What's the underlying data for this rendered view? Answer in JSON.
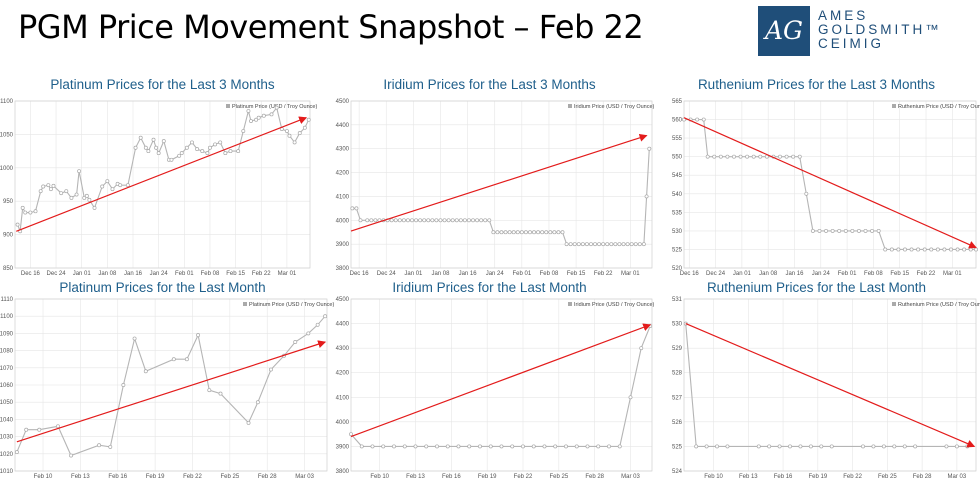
{
  "slide": {
    "title": "PGM Price Movement Snapshot – Feb 22"
  },
  "logo": {
    "mark": "AG",
    "line1": "AMES",
    "line2": "GOLDSMITH™",
    "line3": "CEIMIG"
  },
  "colors": {
    "line": "#b5b5b5",
    "trend": "#e31b1b",
    "title": "#1f5f8b",
    "grid": "#e6e6e6"
  },
  "chart_data": [
    {
      "type": "line",
      "title": "Platinum Prices for the Last 3 Months",
      "legend": "Platinum Price (USD / Troy Ounce)",
      "x_ticks": [
        "Dec 16",
        "Dec 24",
        "Jan 01",
        "Jan 08",
        "Jan 16",
        "Jan 24",
        "Feb 01",
        "Feb 08",
        "Feb 15",
        "Feb 22",
        "Mar 01"
      ],
      "x_range": [
        -0.6,
        10.9
      ],
      "y_ticks": [
        850,
        900,
        950,
        1000,
        1050,
        1100
      ],
      "ylim": [
        850,
        1100
      ],
      "x": [
        -0.5,
        -0.4,
        -0.3,
        -0.2,
        0.0,
        0.2,
        0.4,
        0.5,
        0.7,
        0.8,
        0.9,
        1.2,
        1.4,
        1.6,
        1.8,
        1.9,
        2.1,
        2.2,
        2.3,
        2.5,
        2.8,
        3.0,
        3.2,
        3.4,
        3.5,
        3.8,
        4.1,
        4.3,
        4.5,
        4.6,
        4.8,
        4.9,
        5.0,
        5.2,
        5.4,
        5.5,
        5.8,
        5.9,
        6.1,
        6.3,
        6.5,
        6.7,
        6.9,
        7.0,
        7.2,
        7.4,
        7.6,
        7.8,
        8.1,
        8.3,
        8.5,
        8.6,
        8.8,
        8.9,
        9.1,
        9.4,
        9.6,
        9.8,
        10.0,
        10.1,
        10.3,
        10.5,
        10.7,
        10.85
      ],
      "values": [
        915,
        905,
        940,
        933,
        933,
        935,
        965,
        972,
        974,
        968,
        973,
        962,
        965,
        955,
        960,
        995,
        955,
        958,
        952,
        940,
        972,
        980,
        968,
        976,
        974,
        974,
        1030,
        1045,
        1030,
        1025,
        1042,
        1030,
        1022,
        1040,
        1012,
        1012,
        1018,
        1022,
        1030,
        1038,
        1028,
        1025,
        1022,
        1030,
        1035,
        1038,
        1022,
        1025,
        1025,
        1055,
        1085,
        1070,
        1072,
        1075,
        1078,
        1080,
        1090,
        1058,
        1055,
        1048,
        1038,
        1052,
        1060,
        1072
      ],
      "trend": [
        [
          -0.55,
          905
        ],
        [
          10.75,
          1075
        ]
      ]
    },
    {
      "type": "line",
      "title": "Iridium Prices for the Last 3 Months",
      "legend": "Iridium Price (USD / Troy Ounce)",
      "x_ticks": [
        "Dec 16",
        "Dec 24",
        "Jan 01",
        "Jan 08",
        "Jan 16",
        "Jan 24",
        "Feb 01",
        "Feb 08",
        "Feb 15",
        "Feb 22",
        "Mar 01"
      ],
      "x_range": [
        -0.3,
        10.8
      ],
      "y_ticks": [
        3800,
        3900,
        4000,
        4100,
        4200,
        4300,
        4400,
        4500
      ],
      "ylim": [
        3800,
        4500
      ],
      "x": [
        -0.25,
        -0.1,
        0.05,
        0.3,
        0.45,
        0.6,
        0.75,
        0.9,
        1.05,
        1.2,
        1.35,
        1.5,
        1.65,
        1.8,
        1.95,
        2.1,
        2.25,
        2.4,
        2.55,
        2.7,
        2.85,
        3.0,
        3.15,
        3.3,
        3.45,
        3.6,
        3.75,
        3.9,
        4.05,
        4.2,
        4.35,
        4.5,
        4.65,
        4.8,
        4.95,
        5.1,
        5.25,
        5.4,
        5.55,
        5.7,
        5.85,
        6.0,
        6.15,
        6.3,
        6.45,
        6.6,
        6.75,
        6.9,
        7.05,
        7.2,
        7.35,
        7.5,
        7.65,
        7.8,
        7.95,
        8.1,
        8.25,
        8.4,
        8.55,
        8.7,
        8.85,
        9.0,
        9.15,
        9.3,
        9.45,
        9.6,
        9.75,
        9.9,
        10.05,
        10.2,
        10.35,
        10.5,
        10.6,
        10.7
      ],
      "values": [
        4050,
        4050,
        4000,
        4000,
        4000,
        4000,
        4000,
        4000,
        4000,
        4000,
        4000,
        4000,
        4000,
        4000,
        4000,
        4000,
        4000,
        4000,
        4000,
        4000,
        4000,
        4000,
        4000,
        4000,
        4000,
        4000,
        4000,
        4000,
        4000,
        4000,
        4000,
        4000,
        4000,
        4000,
        3950,
        3950,
        3950,
        3950,
        3950,
        3950,
        3950,
        3950,
        3950,
        3950,
        3950,
        3950,
        3950,
        3950,
        3950,
        3950,
        3950,
        3950,
        3900,
        3900,
        3900,
        3900,
        3900,
        3900,
        3900,
        3900,
        3900,
        3900,
        3900,
        3900,
        3900,
        3900,
        3900,
        3900,
        3900,
        3900,
        3900,
        3900,
        4100,
        4300
      ],
      "trend": [
        [
          -0.3,
          3955
        ],
        [
          10.6,
          4355
        ]
      ]
    },
    {
      "type": "line",
      "title": "Ruthenium Prices for the Last 3 Months",
      "legend": "Ruthenium Price (USD / Troy Ounce)",
      "x_ticks": [
        "Dec 16",
        "Dec 24",
        "Jan 01",
        "Jan 08",
        "Jan 16",
        "Jan 24",
        "Feb 01",
        "Feb 08",
        "Feb 15",
        "Feb 22",
        "Mar 01"
      ],
      "x_range": [
        -0.2,
        10.9
      ],
      "y_ticks": [
        520,
        525,
        530,
        535,
        540,
        545,
        550,
        555,
        560,
        565
      ],
      "ylim": [
        520,
        565
      ],
      "x": [
        -0.2,
        0.05,
        0.3,
        0.55,
        0.7,
        0.95,
        1.2,
        1.45,
        1.7,
        1.95,
        2.2,
        2.45,
        2.7,
        2.95,
        3.2,
        3.45,
        3.7,
        3.95,
        4.2,
        4.45,
        4.7,
        4.95,
        5.2,
        5.45,
        5.7,
        5.95,
        6.2,
        6.45,
        6.7,
        6.95,
        7.2,
        7.45,
        7.7,
        7.95,
        8.2,
        8.45,
        8.7,
        8.95,
        9.2,
        9.45,
        9.7,
        9.95,
        10.2,
        10.45,
        10.7,
        10.9
      ],
      "values": [
        560,
        560,
        560,
        560,
        550,
        550,
        550,
        550,
        550,
        550,
        550,
        550,
        550,
        550,
        550,
        550,
        550,
        550,
        550,
        540,
        530,
        530,
        530,
        530,
        530,
        530,
        530,
        530,
        530,
        530,
        530,
        525,
        525,
        525,
        525,
        525,
        525,
        525,
        525,
        525,
        525,
        525,
        525,
        525,
        525,
        525
      ],
      "trend": [
        [
          -0.2,
          560.5
        ],
        [
          10.9,
          525.5
        ]
      ]
    },
    {
      "type": "line",
      "title": "Platinum Prices for the Last Month",
      "legend": "Platinum Price (USD / Troy Ounce)",
      "x_ticks": [
        "Feb 10",
        "Feb 13",
        "Feb 16",
        "Feb 19",
        "Feb 22",
        "Feb 25",
        "Feb 28",
        "Mar 03"
      ],
      "x_range": [
        -0.75,
        7.6
      ],
      "y_ticks": [
        1010,
        1020,
        1030,
        1040,
        1050,
        1060,
        1070,
        1080,
        1090,
        1100,
        1110
      ],
      "ylim": [
        1010,
        1110
      ],
      "x": [
        -0.7,
        -0.45,
        -0.1,
        0.4,
        0.75,
        1.5,
        1.8,
        2.15,
        2.45,
        2.75,
        3.5,
        3.85,
        4.15,
        4.45,
        4.75,
        5.5,
        5.75,
        6.1,
        6.45,
        6.75,
        7.1,
        7.35,
        7.55
      ],
      "values": [
        1021,
        1034,
        1034,
        1036,
        1019,
        1025,
        1024,
        1060,
        1087,
        1068,
        1075,
        1075,
        1089,
        1057,
        1055,
        1038,
        1050,
        1069,
        1077,
        1085,
        1090,
        1095,
        1100
      ],
      "trend": [
        [
          -0.7,
          1027
        ],
        [
          7.55,
          1085
        ]
      ]
    },
    {
      "type": "line",
      "title": "Iridium Prices for the Last Month",
      "legend": "Iridium Price (USD / Troy Ounce)",
      "x_ticks": [
        "Feb 10",
        "Feb 13",
        "Feb 16",
        "Feb 19",
        "Feb 22",
        "Feb 25",
        "Feb 28",
        "Mar 03"
      ],
      "x_range": [
        -0.8,
        7.6
      ],
      "y_ticks": [
        3800,
        3900,
        4000,
        4100,
        4200,
        4300,
        4400,
        4500
      ],
      "ylim": [
        3800,
        4500
      ],
      "x": [
        -0.8,
        -0.5,
        -0.2,
        0.1,
        0.4,
        0.7,
        1.0,
        1.3,
        1.6,
        1.9,
        2.2,
        2.5,
        2.8,
        3.1,
        3.4,
        3.7,
        4.0,
        4.3,
        4.6,
        4.9,
        5.2,
        5.5,
        5.8,
        6.1,
        6.4,
        6.7,
        7.0,
        7.3,
        7.55
      ],
      "values": [
        3950,
        3900,
        3900,
        3900,
        3900,
        3900,
        3900,
        3900,
        3900,
        3900,
        3900,
        3900,
        3900,
        3900,
        3900,
        3900,
        3900,
        3900,
        3900,
        3900,
        3900,
        3900,
        3900,
        3900,
        3900,
        3900,
        4100,
        4300,
        4390
      ],
      "trend": [
        [
          -0.8,
          3940
        ],
        [
          7.55,
          4395
        ]
      ]
    },
    {
      "type": "line",
      "title": "Ruthenium Prices for the Last Month",
      "legend": "Ruthenium Price (USD / Troy Ounce)",
      "x_ticks": [
        "Feb 10",
        "Feb 13",
        "Feb 16",
        "Feb 19",
        "Feb 22",
        "Feb 25",
        "Feb 28",
        "Mar 03"
      ],
      "x_range": [
        -0.85,
        7.55
      ],
      "y_ticks": [
        524.0,
        525.0,
        526.0,
        527.0,
        528.0,
        529.0,
        530.0,
        531.0
      ],
      "ylim": [
        524,
        531
      ],
      "x": [
        -0.8,
        -0.5,
        -0.2,
        0.1,
        0.4,
        1.3,
        1.6,
        1.9,
        2.2,
        2.5,
        2.8,
        3.1,
        3.4,
        4.3,
        4.6,
        4.9,
        5.2,
        5.5,
        5.8,
        6.7,
        7.0,
        7.3
      ],
      "values": [
        530.0,
        525.0,
        525.0,
        525.0,
        525.0,
        525.0,
        525.0,
        525.0,
        525.0,
        525.0,
        525.0,
        525.0,
        525.0,
        525.0,
        525.0,
        525.0,
        525.0,
        525.0,
        525.0,
        525.0,
        525.0,
        525.0
      ],
      "trend": [
        [
          -0.8,
          530.0
        ],
        [
          7.5,
          525.0
        ]
      ]
    }
  ]
}
